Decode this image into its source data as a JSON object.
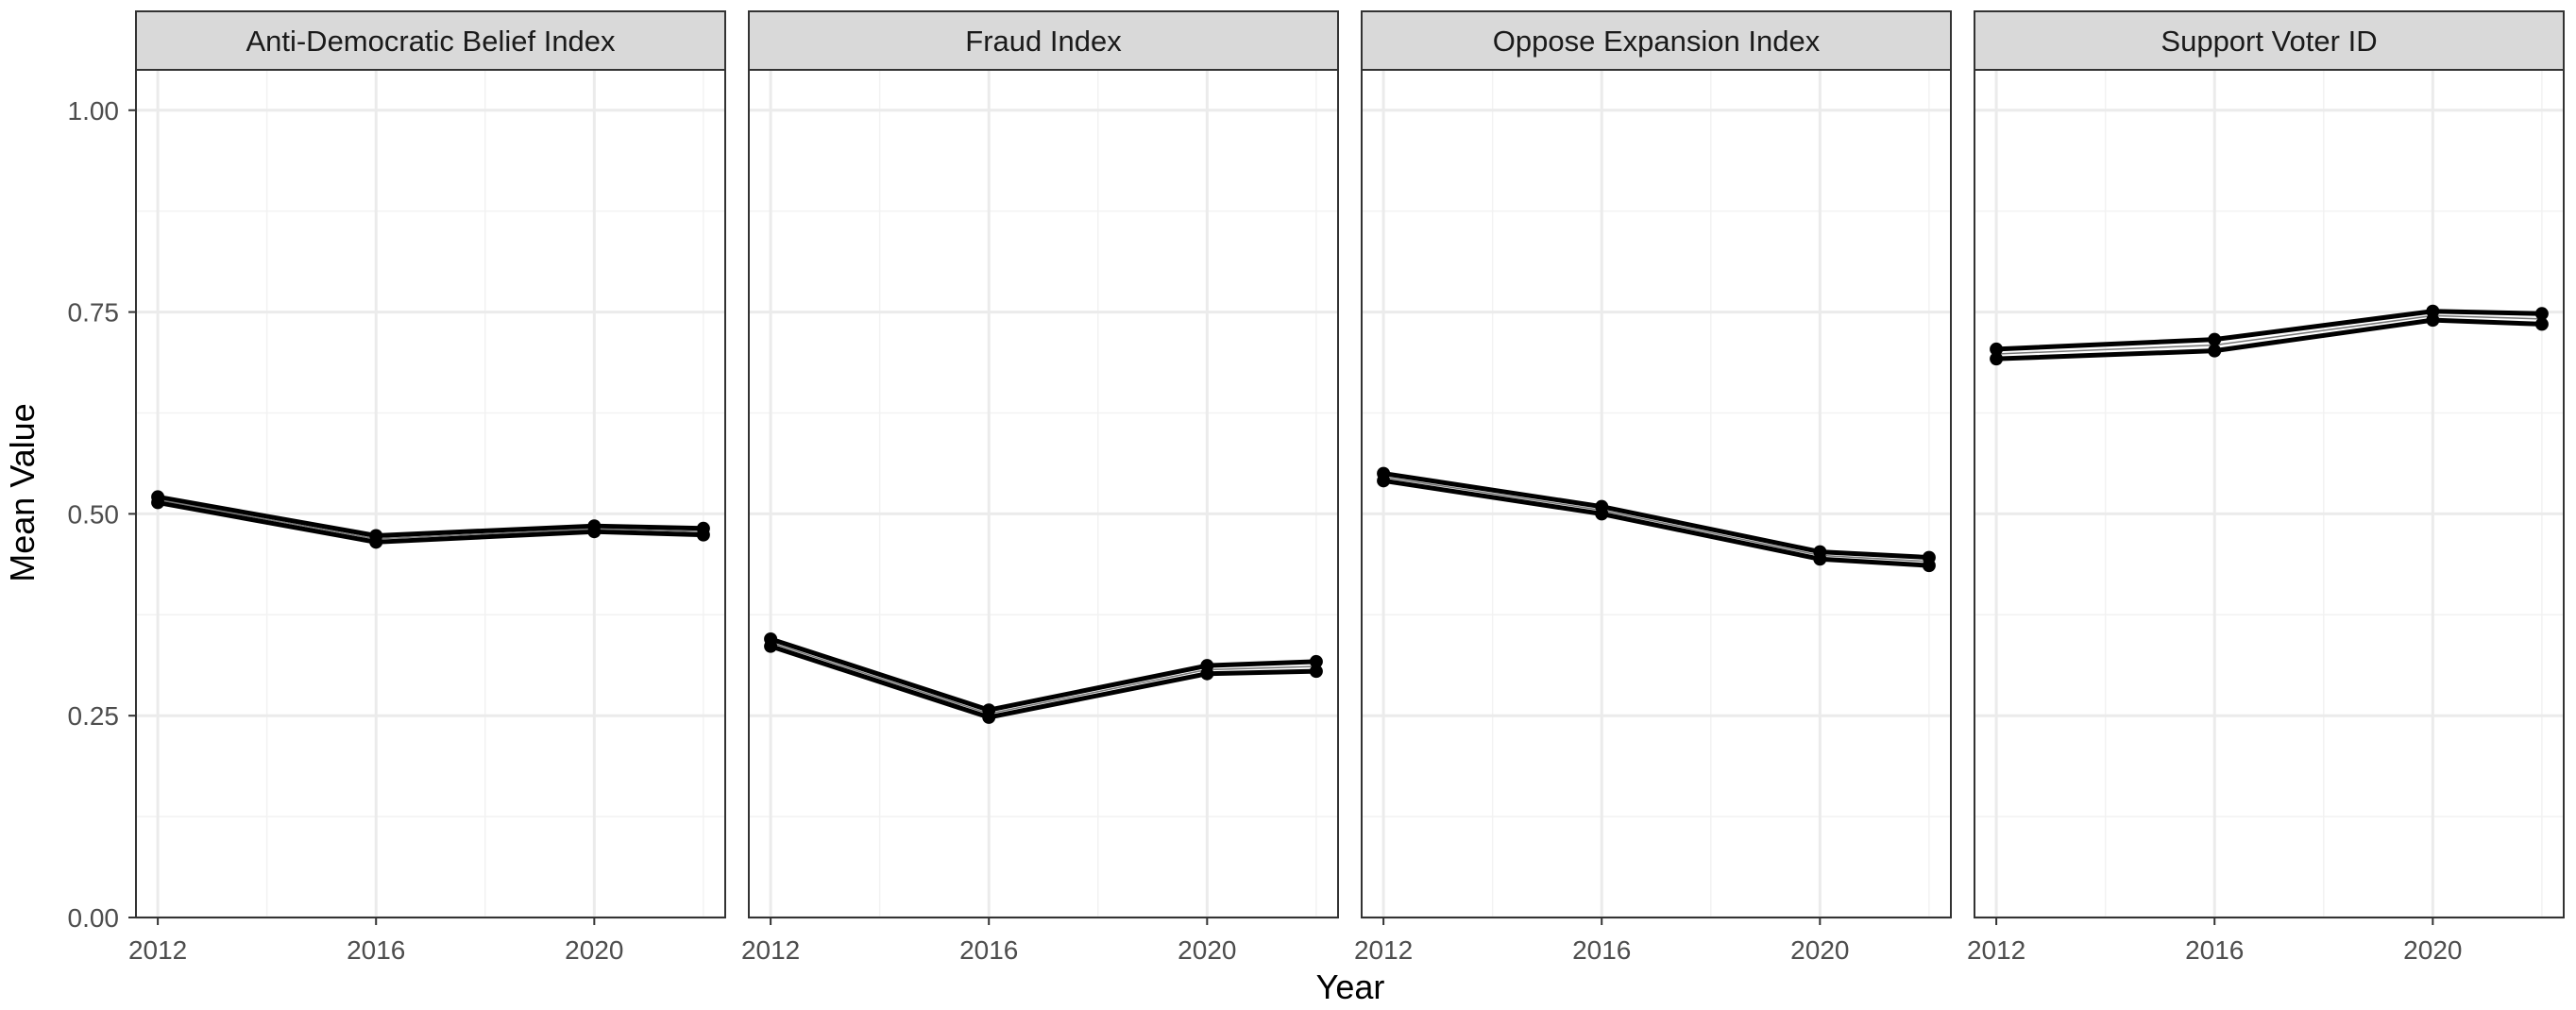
{
  "chart_data": {
    "type": "line",
    "xlabel": "Year",
    "ylabel": "Mean Value",
    "ylim": [
      0,
      1.05
    ],
    "xlim": [
      2011.6,
      2022.4
    ],
    "x_ticks": [
      2012,
      2016,
      2020
    ],
    "x_tick_labels": [
      "2012",
      "2016",
      "2020"
    ],
    "y_ticks": [
      0,
      0.25,
      0.5,
      0.75,
      1.0
    ],
    "y_tick_labels": [
      "0.00",
      "0.25",
      "0.50",
      "0.75",
      "1.00"
    ],
    "grid": true,
    "theme": "bw",
    "line_color": "#000000",
    "panels": [
      {
        "strip_label": "Anti-Democratic Belief Index",
        "x": [
          2012,
          2016,
          2020,
          2022
        ],
        "series": [
          {
            "values": [
              0.521,
              0.473,
              0.485,
              0.482
            ]
          },
          {
            "values": [
              0.514,
              0.465,
              0.478,
              0.474
            ]
          }
        ]
      },
      {
        "strip_label": "Fraud Index",
        "x": [
          2012,
          2016,
          2020,
          2022
        ],
        "series": [
          {
            "values": [
              0.345,
              0.257,
              0.312,
              0.317
            ]
          },
          {
            "values": [
              0.336,
              0.248,
              0.302,
              0.305
            ]
          }
        ]
      },
      {
        "strip_label": "Oppose Expansion Index",
        "x": [
          2012,
          2016,
          2020,
          2022
        ],
        "series": [
          {
            "values": [
              0.55,
              0.509,
              0.453,
              0.446
            ]
          },
          {
            "values": [
              0.541,
              0.5,
              0.444,
              0.436
            ]
          }
        ]
      },
      {
        "strip_label": "Support Voter ID",
        "x": [
          2012,
          2016,
          2020,
          2022
        ],
        "series": [
          {
            "values": [
              0.704,
              0.716,
              0.751,
              0.748
            ]
          },
          {
            "values": [
              0.692,
              0.702,
              0.74,
              0.735
            ]
          }
        ]
      }
    ]
  }
}
